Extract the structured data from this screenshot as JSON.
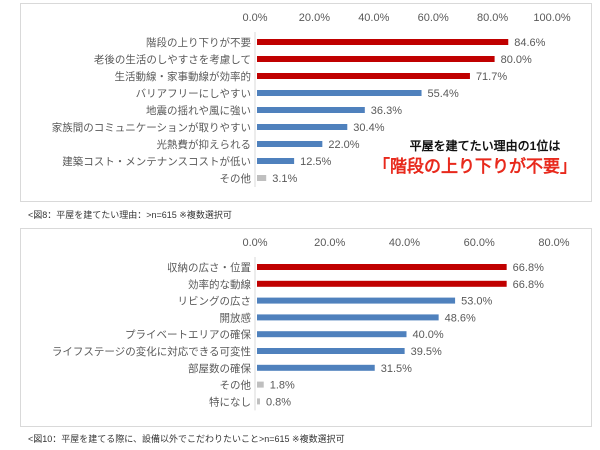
{
  "chart_data": [
    {
      "type": "bar",
      "orientation": "horizontal",
      "xlim": [
        0,
        100
      ],
      "tick_labels": [
        "0.0%",
        "20.0%",
        "40.0%",
        "60.0%",
        "80.0%",
        "100.0%"
      ],
      "categories": [
        "階段の上り下りが不要",
        "老後の生活のしやすさを考慮して",
        "生活動線・家事動線が効率的",
        "バリアフリーにしやすい",
        "地震の揺れや風に強い",
        "家族間のコミュニケーションが取りやすい",
        "光熱費が抑えられる",
        "建築コスト・メンテナンスコストが低い",
        "その他"
      ],
      "values": [
        84.6,
        80.0,
        71.7,
        55.4,
        36.3,
        30.4,
        22.0,
        12.5,
        3.1
      ],
      "colors": [
        "#c00000",
        "#c00000",
        "#c00000",
        "#4f81bd",
        "#4f81bd",
        "#4f81bd",
        "#4f81bd",
        "#4f81bd",
        "#bfbfbf"
      ],
      "caption": "<図8：平屋を建てたい理由：>n=615 ※複数選択可",
      "annotation": {
        "line1": "平屋を建てたい理由の1位は",
        "line2": "「階段の上り下りが不要」"
      }
    },
    {
      "type": "bar",
      "orientation": "horizontal",
      "xlim": [
        0,
        80
      ],
      "tick_labels": [
        "0.0%",
        "20.0%",
        "40.0%",
        "60.0%",
        "80.0%"
      ],
      "categories": [
        "収納の広さ・位置",
        "効率的な動線",
        "リビングの広さ",
        "開放感",
        "プライベートエリアの確保",
        "ライフステージの変化に対応できる可変性",
        "部屋数の確保",
        "その他",
        "特になし"
      ],
      "values": [
        66.8,
        66.8,
        53.0,
        48.6,
        40.0,
        39.5,
        31.5,
        1.8,
        0.8
      ],
      "colors": [
        "#c00000",
        "#c00000",
        "#4f81bd",
        "#4f81bd",
        "#4f81bd",
        "#4f81bd",
        "#4f81bd",
        "#bfbfbf",
        "#bfbfbf"
      ],
      "caption": "<図10：平屋を建てる際に、設備以外でこだわりたいこと>n=615 ※複数選択可"
    }
  ]
}
